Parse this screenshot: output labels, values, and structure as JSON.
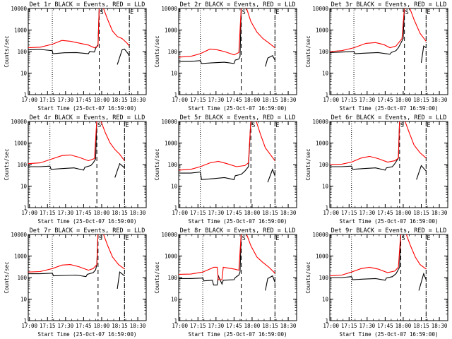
{
  "figure": {
    "xlabel": "Start Time (25-Oct-07 16:59:00)",
    "ylabel": "Counts/sec",
    "x_ticks": [
      "17:00",
      "17:15",
      "17:30",
      "17:45",
      "18:00",
      "18:15",
      "18:30"
    ],
    "y_ticks": [
      "1",
      "10",
      "100",
      "1000",
      "10000"
    ]
  },
  "colors": {
    "events": "#000000",
    "lld": "#ff0000",
    "axes": "#000000",
    "background": "#ffffff"
  },
  "chart_data": [
    {
      "type": "line",
      "title": "Det 1r BLACK = Events, RED = LLD",
      "xlabel": "Start Time (25-Oct-07 16:59:00)",
      "ylabel": "Counts/sec",
      "xlim_minutes": [
        0,
        98
      ],
      "ylim": [
        1,
        10000
      ],
      "yscale": "log",
      "markers": [
        {
          "label": "S",
          "x": 59
        },
        {
          "label": "E",
          "x": 84
        }
      ],
      "vlines_dotted": [
        20,
        84
      ],
      "vlines_dashed": [
        59,
        84
      ],
      "series": [
        {
          "name": "Events",
          "color": "#000000",
          "x": [
            0,
            10,
            20,
            20.5,
            30,
            40,
            50,
            51,
            55,
            56,
            58,
            59,
            62,
            64,
            69,
            71,
            73,
            74,
            78,
            80,
            83,
            84
          ],
          "y": [
            120,
            125,
            110,
            80,
            88,
            90,
            80,
            100,
            95,
            140,
            210,
            12000,
            null,
            null,
            null,
            null,
            null,
            25,
            120,
            130,
            80,
            60
          ]
        },
        {
          "name": "LLD",
          "color": "#ff0000",
          "x": [
            0,
            10,
            20,
            28,
            35,
            42,
            50,
            55,
            58,
            59,
            62,
            66,
            70,
            74,
            78,
            82,
            84
          ],
          "y": [
            150,
            160,
            220,
            330,
            300,
            250,
            200,
            150,
            180,
            12000,
            12000,
            3000,
            900,
            500,
            400,
            250,
            180
          ]
        }
      ]
    },
    {
      "type": "line",
      "title": "Det 2r BLACK = Events, RED = LLD",
      "xlabel": "Start Time (25-Oct-07 16:59:00)",
      "ylabel": "Counts/sec",
      "xlim_minutes": [
        0,
        98
      ],
      "ylim": [
        1,
        10000
      ],
      "yscale": "log",
      "markers": [
        {
          "label": "S",
          "x": 52
        },
        {
          "label": "E",
          "x": 80
        }
      ],
      "vlines_dotted": [
        18,
        80
      ],
      "vlines_dashed": [
        52,
        80
      ],
      "series": [
        {
          "name": "Events",
          "color": "#000000",
          "x": [
            0,
            10,
            18,
            19,
            28,
            38,
            46,
            47,
            50,
            51,
            52,
            66,
            70,
            72,
            74,
            78,
            80
          ],
          "y": [
            35,
            35,
            38,
            28,
            30,
            32,
            28,
            40,
            45,
            60,
            12000,
            null,
            null,
            20,
            50,
            65,
            40
          ]
        },
        {
          "name": "LLD",
          "color": "#ff0000",
          "x": [
            0,
            10,
            18,
            26,
            32,
            38,
            46,
            50,
            52,
            56,
            60,
            65,
            70,
            75,
            80
          ],
          "y": [
            55,
            60,
            80,
            130,
            120,
            100,
            70,
            90,
            12000,
            12000,
            2500,
            800,
            400,
            250,
            150
          ]
        }
      ]
    },
    {
      "type": "line",
      "title": "Det 3r BLACK = Events, RED = LLD",
      "xlabel": "Start Time (25-Oct-07 16:59:00)",
      "ylabel": "Counts/sec",
      "xlim_minutes": [
        0,
        98
      ],
      "ylim": [
        1,
        10000
      ],
      "yscale": "log",
      "markers": [
        {
          "label": "S",
          "x": 62
        },
        {
          "label": "E",
          "x": 80
        }
      ],
      "vlines_dotted": [
        20,
        80
      ],
      "vlines_dashed": [
        62,
        80
      ],
      "series": [
        {
          "name": "Events",
          "color": "#000000",
          "x": [
            0,
            10,
            20,
            21,
            30,
            40,
            50,
            51,
            55,
            57,
            61,
            62,
            72,
            74,
            76,
            78,
            80
          ],
          "y": [
            90,
            95,
            100,
            80,
            85,
            90,
            75,
            90,
            110,
            150,
            400,
            12000,
            null,
            null,
            30,
            180,
            150
          ]
        },
        {
          "name": "LLD",
          "color": "#ff0000",
          "x": [
            0,
            10,
            20,
            30,
            38,
            45,
            50,
            55,
            60,
            62,
            66,
            70,
            75,
            80
          ],
          "y": [
            100,
            110,
            150,
            240,
            260,
            210,
            150,
            180,
            400,
            12000,
            12000,
            3000,
            700,
            300
          ]
        }
      ]
    },
    {
      "type": "line",
      "title": "Det 4r BLACK = Events, RED = LLD",
      "xlabel": "Start Time (25-Oct-07 16:59:00)",
      "ylabel": "Counts/sec",
      "xlim_minutes": [
        0,
        98
      ],
      "ylim": [
        1,
        10000
      ],
      "yscale": "log",
      "markers": [
        {
          "label": "S",
          "x": 57
        },
        {
          "label": "E",
          "x": 80
        }
      ],
      "vlines_dotted": [
        18,
        80
      ],
      "vlines_dashed": [
        57,
        80
      ],
      "series": [
        {
          "name": "Events",
          "color": "#000000",
          "x": [
            0,
            10,
            18,
            19,
            28,
            38,
            46,
            47,
            52,
            54,
            56,
            57,
            68,
            70,
            72,
            76,
            80
          ],
          "y": [
            80,
            80,
            85,
            60,
            65,
            70,
            55,
            75,
            90,
            120,
            180,
            12000,
            null,
            null,
            25,
            110,
            70
          ]
        },
        {
          "name": "LLD",
          "color": "#ff0000",
          "x": [
            0,
            10,
            18,
            28,
            35,
            42,
            50,
            55,
            57,
            60,
            64,
            68,
            72,
            76,
            80
          ],
          "y": [
            110,
            120,
            170,
            260,
            280,
            220,
            150,
            190,
            12000,
            12000,
            3000,
            1000,
            500,
            300,
            150
          ]
        }
      ]
    },
    {
      "type": "line",
      "title": "Det 5r BLACK = Events, RED = LLD",
      "xlabel": "Start Time (25-Oct-07 16:59:00)",
      "ylabel": "Counts/sec",
      "xlim_minutes": [
        0,
        98
      ],
      "ylim": [
        1,
        10000
      ],
      "yscale": "log",
      "markers": [
        {
          "label": "S",
          "x": 60
        },
        {
          "label": "E",
          "x": 80
        }
      ],
      "vlines_dotted": [
        18,
        80
      ],
      "vlines_dashed": [
        60,
        80
      ],
      "series": [
        {
          "name": "Events",
          "color": "#000000",
          "x": [
            0,
            10,
            18,
            19,
            28,
            38,
            46,
            47,
            52,
            55,
            58,
            60,
            70,
            72,
            74,
            78,
            80
          ],
          "y": [
            40,
            40,
            45,
            20,
            22,
            25,
            20,
            30,
            35,
            50,
            80,
            12000,
            null,
            null,
            15,
            60,
            30
          ]
        },
        {
          "name": "LLD",
          "color": "#ff0000",
          "x": [
            0,
            10,
            18,
            26,
            33,
            40,
            48,
            55,
            58,
            60,
            64,
            68,
            72,
            76,
            80
          ],
          "y": [
            55,
            60,
            80,
            120,
            140,
            110,
            80,
            90,
            120,
            12000,
            12000,
            2500,
            600,
            300,
            150
          ]
        }
      ]
    },
    {
      "type": "line",
      "title": "Det 6r BLACK = Events, RED = LLD",
      "xlabel": "Start Time (25-Oct-07 16:59:00)",
      "ylabel": "Counts/sec",
      "xlim_minutes": [
        0,
        98
      ],
      "ylim": [
        1,
        10000
      ],
      "yscale": "log",
      "markers": [
        {
          "label": "S",
          "x": 58
        },
        {
          "label": "E",
          "x": 80
        }
      ],
      "vlines_dotted": [
        18,
        80
      ],
      "vlines_dashed": [
        58,
        80
      ],
      "series": [
        {
          "name": "Events",
          "color": "#000000",
          "x": [
            0,
            10,
            18,
            19,
            28,
            38,
            46,
            47,
            52,
            54,
            57,
            58,
            68,
            70,
            72,
            76,
            80
          ],
          "y": [
            80,
            80,
            85,
            60,
            65,
            70,
            55,
            70,
            80,
            110,
            200,
            12000,
            null,
            null,
            20,
            90,
            50
          ]
        },
        {
          "name": "LLD",
          "color": "#ff0000",
          "x": [
            0,
            10,
            18,
            26,
            33,
            40,
            48,
            54,
            57,
            58,
            62,
            66,
            70,
            75,
            80
          ],
          "y": [
            100,
            105,
            130,
            200,
            240,
            190,
            130,
            150,
            200,
            12000,
            12000,
            3000,
            800,
            350,
            200
          ]
        }
      ]
    },
    {
      "type": "line",
      "title": "Det 7r BLACK = Events, RED = LLD",
      "xlabel": "Start Time (25-Oct-07 16:59:00)",
      "ylabel": "Counts/sec",
      "xlim_minutes": [
        0,
        98
      ],
      "ylim": [
        1,
        10000
      ],
      "yscale": "log",
      "markers": [
        {
          "label": "S",
          "x": 58
        },
        {
          "label": "E",
          "x": 80
        }
      ],
      "vlines_dotted": [
        20,
        80
      ],
      "vlines_dashed": [
        58,
        80
      ],
      "series": [
        {
          "name": "Events",
          "color": "#000000",
          "x": [
            0,
            10,
            20,
            21,
            30,
            40,
            48,
            49,
            54,
            56,
            57,
            58,
            70,
            72,
            74,
            76,
            80
          ],
          "y": [
            150,
            150,
            160,
            120,
            125,
            130,
            110,
            140,
            170,
            230,
            400,
            12000,
            null,
            null,
            30,
            180,
            120
          ]
        },
        {
          "name": "LLD",
          "color": "#ff0000",
          "x": [
            0,
            10,
            20,
            28,
            35,
            42,
            50,
            54,
            57,
            58,
            62,
            66,
            70,
            75,
            80
          ],
          "y": [
            180,
            190,
            260,
            380,
            400,
            320,
            220,
            260,
            400,
            12000,
            12000,
            3000,
            900,
            400,
            250
          ]
        }
      ]
    },
    {
      "type": "line",
      "title": "Det 8r BLACK = Events, RED = LLD",
      "xlabel": "Start Time (25-Oct-07 16:59:00)",
      "ylabel": "Counts/sec",
      "xlim_minutes": [
        0,
        98
      ],
      "ylim": [
        1,
        10000
      ],
      "yscale": "log",
      "markers": [
        {
          "label": "S",
          "x": 52
        },
        {
          "label": "E",
          "x": 80
        }
      ],
      "vlines_dotted": [
        20,
        80
      ],
      "vlines_dashed": [
        52,
        80
      ],
      "series": [
        {
          "name": "Events",
          "color": "#000000",
          "x": [
            0,
            10,
            20,
            21,
            28,
            29,
            32,
            33,
            36,
            37,
            46,
            47,
            50,
            51,
            52,
            66,
            70,
            72,
            74,
            78,
            80
          ],
          "y": [
            90,
            90,
            95,
            70,
            75,
            45,
            45,
            120,
            50,
            75,
            80,
            100,
            130,
            180,
            12000,
            null,
            null,
            25,
            90,
            120,
            60
          ]
        },
        {
          "name": "LLD",
          "color": "#ff0000",
          "x": [
            0,
            10,
            20,
            28,
            29,
            32,
            33,
            36,
            37,
            46,
            50,
            52,
            56,
            60,
            65,
            70,
            75,
            80
          ],
          "y": [
            140,
            145,
            180,
            280,
            300,
            300,
            80,
            80,
            300,
            250,
            220,
            12000,
            12000,
            3000,
            900,
            500,
            300,
            160
          ]
        }
      ]
    },
    {
      "type": "line",
      "title": "Det 9r BLACK = Events, RED = LLD",
      "xlabel": "Start Time (25-Oct-07 16:59:00)",
      "ylabel": "Counts/sec",
      "xlim_minutes": [
        0,
        98
      ],
      "ylim": [
        1,
        10000
      ],
      "yscale": "log",
      "markers": [
        {
          "label": "S",
          "x": 59
        },
        {
          "label": "E",
          "x": 80
        }
      ],
      "vlines_dotted": [
        18,
        80
      ],
      "vlines_dashed": [
        59,
        80
      ],
      "series": [
        {
          "name": "Events",
          "color": "#000000",
          "x": [
            0,
            10,
            18,
            19,
            28,
            38,
            46,
            47,
            52,
            55,
            58,
            59,
            70,
            72,
            74,
            78,
            80
          ],
          "y": [
            100,
            100,
            110,
            80,
            85,
            90,
            75,
            95,
            110,
            150,
            300,
            12000,
            null,
            null,
            25,
            150,
            80
          ]
        },
        {
          "name": "LLD",
          "color": "#ff0000",
          "x": [
            0,
            10,
            18,
            26,
            33,
            40,
            48,
            54,
            57,
            59,
            63,
            67,
            71,
            75,
            80
          ],
          "y": [
            120,
            130,
            180,
            260,
            300,
            250,
            170,
            200,
            300,
            12000,
            12000,
            3000,
            900,
            400,
            250
          ]
        }
      ]
    }
  ]
}
